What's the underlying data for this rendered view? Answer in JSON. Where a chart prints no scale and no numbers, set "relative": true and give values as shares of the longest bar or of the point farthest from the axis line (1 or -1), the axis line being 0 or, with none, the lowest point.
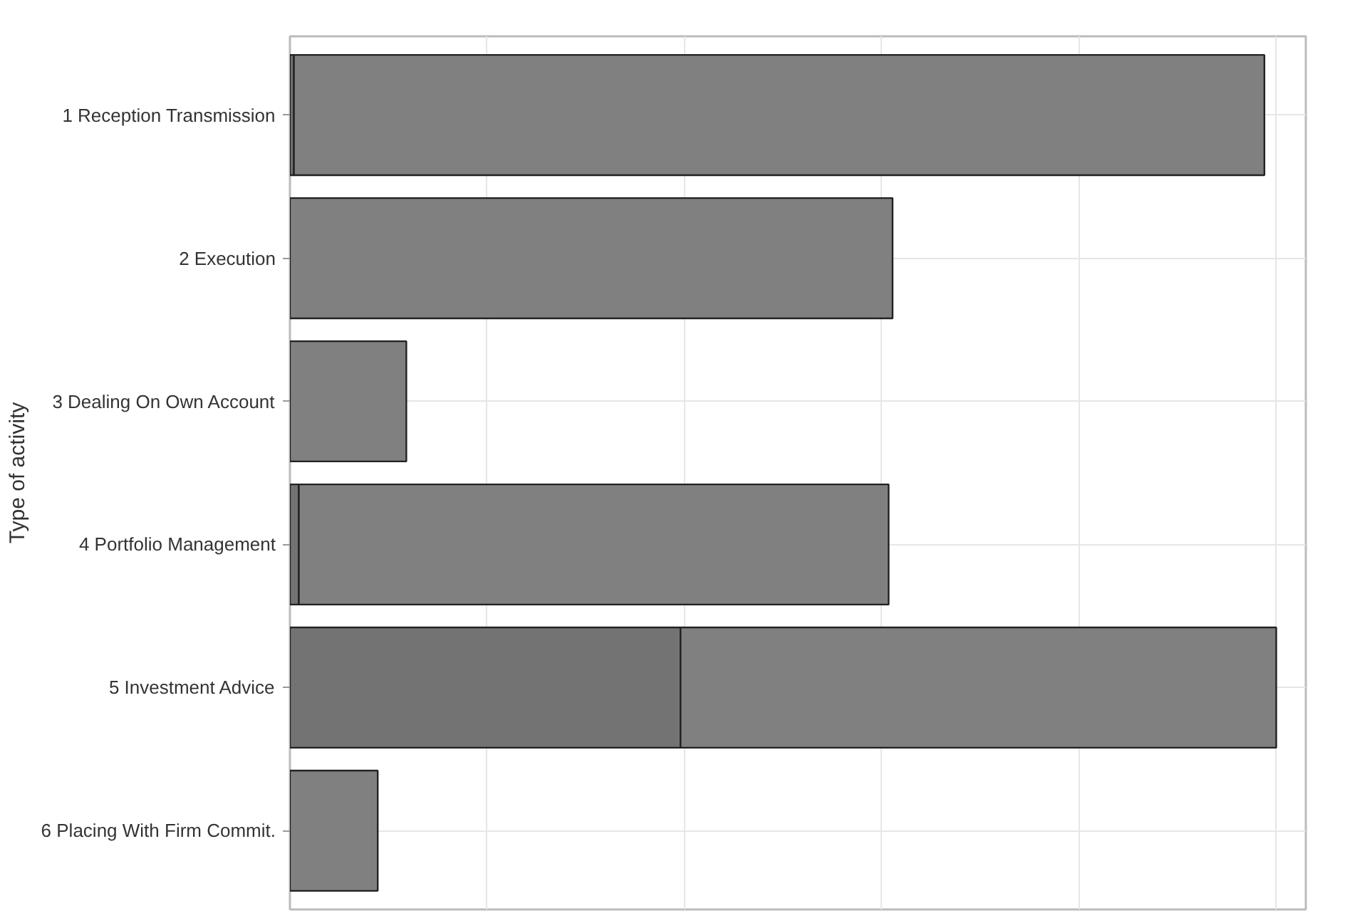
{
  "chart_data": {
    "type": "bar",
    "orientation": "horizontal",
    "stacked": true,
    "relative": true,
    "ylabel": "Type of activity",
    "categories": [
      "1 Reception Transmission",
      "2 Execution",
      "3 Dealing On Own Account",
      "4 Portfolio Management",
      "5 Investment Advice",
      "6 Placing With Firm Commit."
    ],
    "series": [
      {
        "color": "#737373",
        "values": [
          0.004,
          0,
          0,
          0.009,
          0.396,
          0
        ]
      },
      {
        "color": "#808080",
        "values": [
          0.984,
          0.611,
          0.118,
          0.598,
          0.604,
          0.089
        ]
      }
    ],
    "grid": true,
    "tick_labels": "y"
  }
}
